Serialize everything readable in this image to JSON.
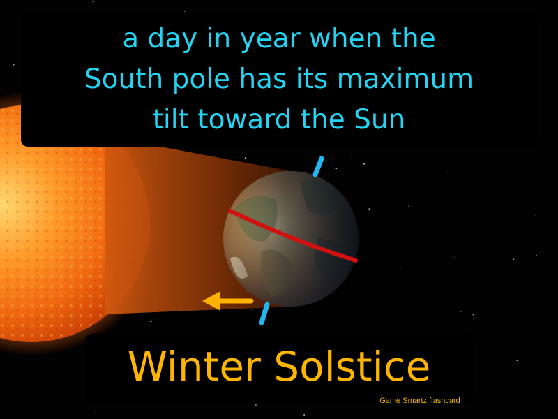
{
  "definition": {
    "lines": [
      "a day in year when the",
      "South pole has its maximum",
      "tilt toward the Sun"
    ]
  },
  "term": "Winter Solstice",
  "credit": "Game Smartz flashcard",
  "illustration": {
    "icons": [
      "sun-icon",
      "earth-icon",
      "earth-axis-icon",
      "equator-line-icon",
      "orbit-direction-arrow-icon"
    ],
    "colors": {
      "definition_text": "#25d3f2",
      "term_text": "#ffb400",
      "credit_text": "#f2b400",
      "axis": "#22b7f0",
      "equator": "#d11010",
      "arrow": "#ffb100"
    }
  }
}
